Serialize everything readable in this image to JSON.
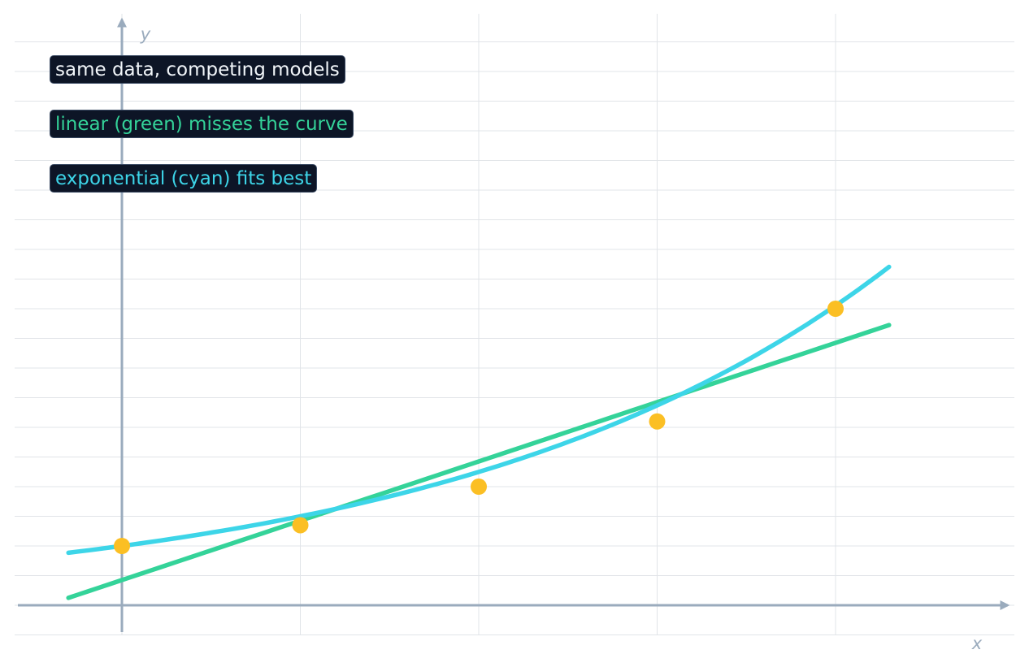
{
  "chart_data": {
    "type": "scatter",
    "title": "",
    "xlabel": "x",
    "ylabel": "y",
    "xlim": [
      -0.3,
      4.9
    ],
    "ylim": [
      -0.2,
      4.0
    ],
    "grid": true,
    "x_ticks": [
      0,
      1,
      2,
      3,
      4
    ],
    "points": {
      "color": "#fbbf24",
      "x": [
        0,
        1,
        2,
        3,
        4
      ],
      "y": [
        0.4,
        0.54,
        0.8,
        1.24,
        2.0
      ]
    },
    "series": [
      {
        "model": "linear",
        "color": "#34d399",
        "x_range": [
          -0.3,
          4.3
        ],
        "intercept": 0.17,
        "slope": 0.4
      },
      {
        "model": "exponential",
        "color": "#3dd5e8",
        "x_range": [
          -0.3,
          4.3
        ],
        "a": 0.4,
        "b": 0.405
      }
    ],
    "annotations": [
      {
        "text": "same data, competing models",
        "color": "#f1f5f9"
      },
      {
        "text": "linear (green) misses the curve",
        "color": "#34d399"
      },
      {
        "text": "exponential (cyan) fits best",
        "color": "#3dd5e8"
      }
    ]
  }
}
